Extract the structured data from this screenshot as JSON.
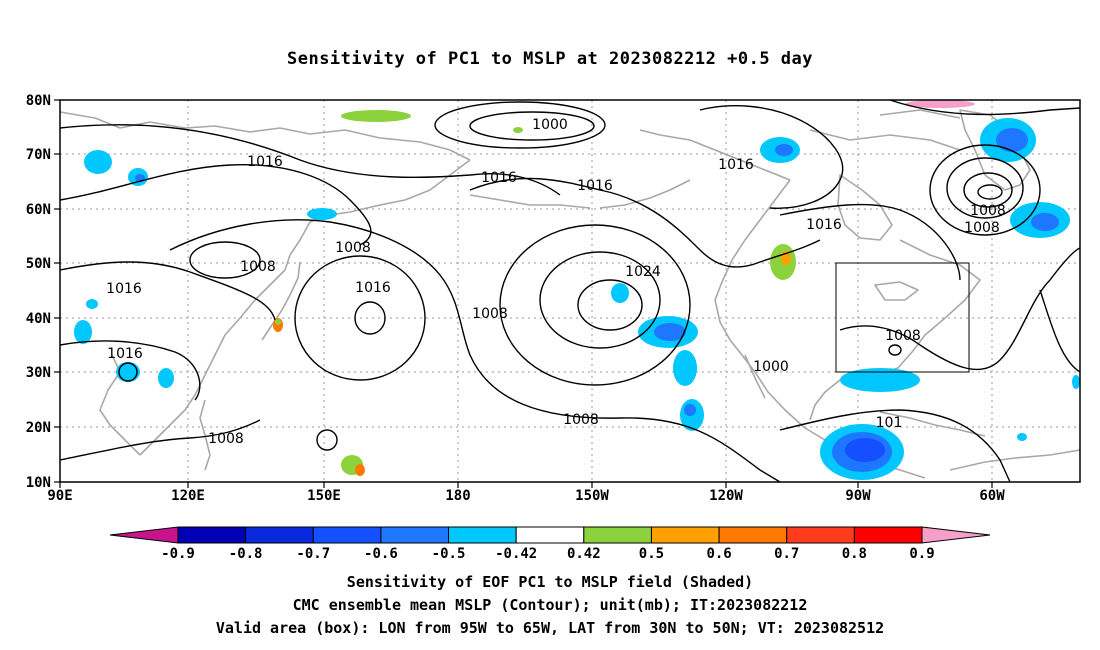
{
  "title": "Sensitivity of PC1 to MSLP at 2023082212 +0.5 day",
  "axes": {
    "lat_labels": [
      "80N",
      "70N",
      "60N",
      "50N",
      "40N",
      "30N",
      "20N",
      "10N"
    ],
    "lon_labels": [
      "90E",
      "120E",
      "150E",
      "180",
      "150W",
      "120W",
      "90W",
      "60W"
    ]
  },
  "contour_labels": [
    "1000",
    "1016",
    "1016",
    "1016",
    "1008",
    "1008",
    "1016",
    "1016",
    "1024",
    "1008",
    "1016",
    "1008",
    "1008",
    "1016",
    "1016",
    "1008",
    "1000",
    "1008",
    "1008",
    "101"
  ],
  "colorbar": {
    "ticks": [
      "-0.9",
      "-0.8",
      "-0.7",
      "-0.6",
      "-0.5",
      "-0.42",
      "0.42",
      "0.5",
      "0.6",
      "0.7",
      "0.8",
      "0.9"
    ],
    "colors": [
      "#0000b4",
      "#0a28dc",
      "#1450ff",
      "#1e78ff",
      "#00c8ff",
      "#ffffff",
      "#8cd23c",
      "#ffa000",
      "#ff7800",
      "#ff3c1e",
      "#ff0000"
    ],
    "low_extend_color": "#c8148c",
    "high_extend_color": "#f5a0c8"
  },
  "valid_box": {
    "lon_from": "95W",
    "lon_to": "65W",
    "lat_from": "30N",
    "lat_to": "50N"
  },
  "captions": [
    "Sensitivity of EOF PC1 to MSLP field (Shaded)",
    "CMC ensemble mean MSLP (Contour); unit(mb); IT:2023082212",
    "Valid area (box): LON from 95W to 65W, LAT from 30N to 50N; VT: 2023082512"
  ]
}
